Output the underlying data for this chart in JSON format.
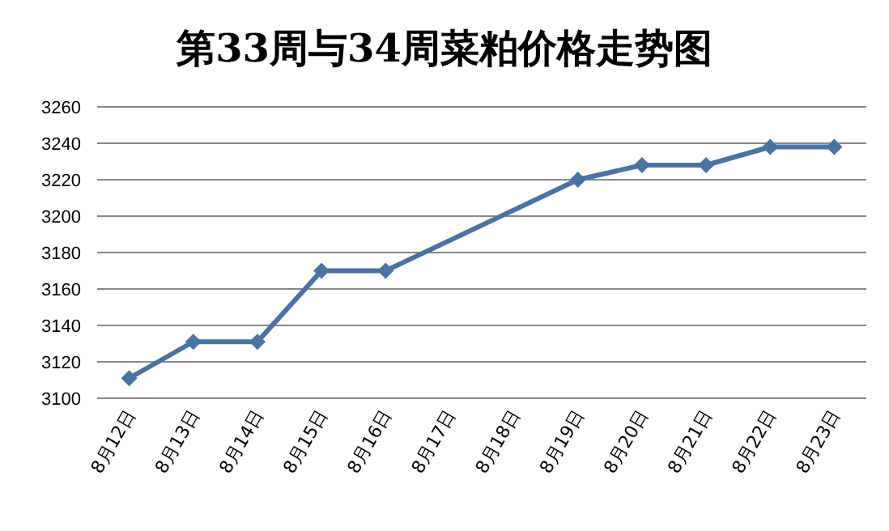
{
  "chart_data": {
    "type": "line",
    "title": "第33周与34周菜粕价格走势图",
    "categories": [
      "8月12日",
      "8月13日",
      "8月14日",
      "8月15日",
      "8月16日",
      "8月17日",
      "8月18日",
      "8月19日",
      "8月20日",
      "8月21日",
      "8月22日",
      "8月23日"
    ],
    "series": [
      {
        "color": "#4a73a2",
        "values": [
          3111,
          3131,
          3131,
          3170,
          3170,
          null,
          null,
          3220,
          3228,
          3228,
          3238,
          3238
        ]
      }
    ],
    "ylim": [
      3100,
      3260
    ],
    "yticks": [
      3100,
      3120,
      3140,
      3160,
      3180,
      3200,
      3220,
      3240,
      3260
    ],
    "grid": "y",
    "marker": "diamond",
    "line_style": "solid"
  }
}
